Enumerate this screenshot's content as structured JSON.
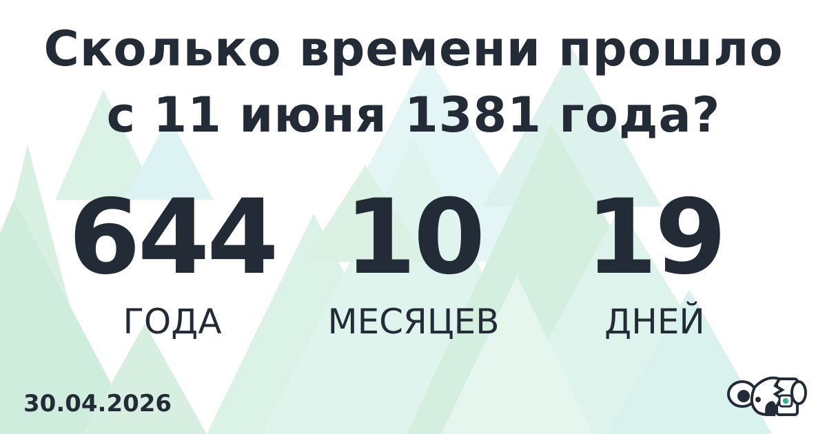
{
  "title_line1": "Сколько времени прошло",
  "title_line2": "с 11 июня 1381 года?",
  "result": [
    {
      "value": "644",
      "unit": "ГОДА"
    },
    {
      "value": "10",
      "unit": "МЕСЯЦЕВ"
    },
    {
      "value": "19",
      "unit": "ДНЕЙ"
    }
  ],
  "date": "30.04.2026",
  "colors": {
    "text": "#222b36",
    "triangle_green": "#c8ead6",
    "triangle_teal": "#c9ecec",
    "logo_accent": "#2bb58a"
  }
}
